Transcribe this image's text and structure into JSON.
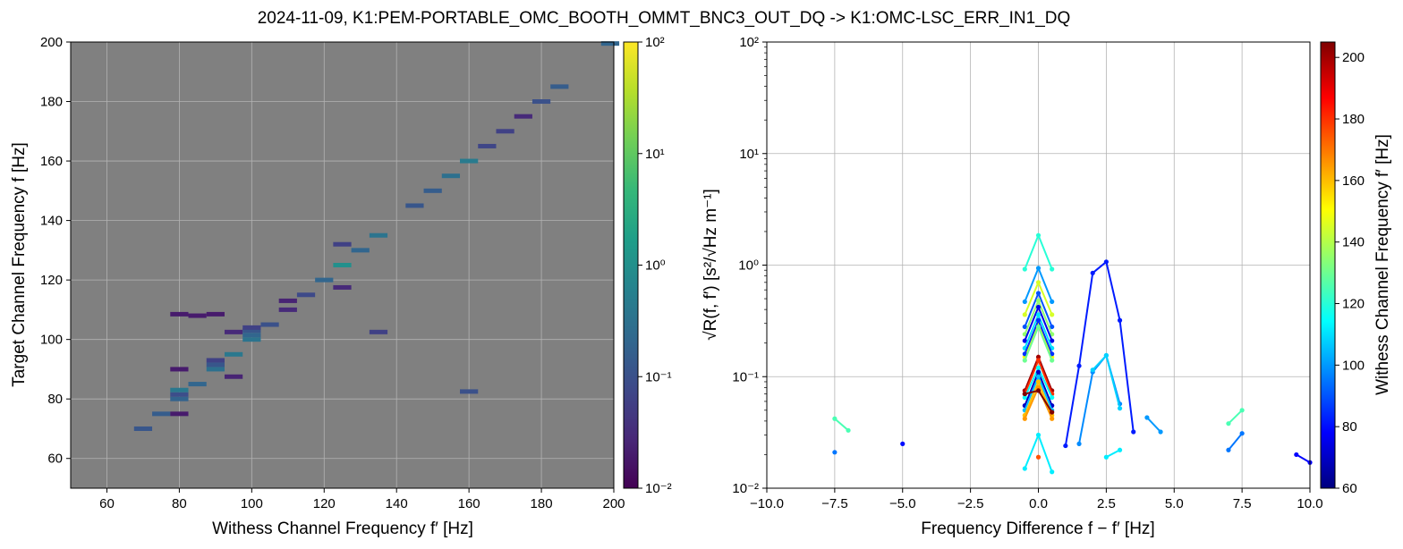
{
  "figure": {
    "title": "2024-11-09, K1:PEM-PORTABLE_OMC_BOOTH_OMMT_BNC3_OUT_DQ -> K1:OMC-LSC_ERR_IN1_DQ"
  },
  "colors": {
    "panel_background": "#808080",
    "grid": "#b3b3b3",
    "viridis": [
      "#440154",
      "#482878",
      "#3e4989",
      "#31688e",
      "#26828e",
      "#1f9e89",
      "#35b779",
      "#6ece58",
      "#b5de2b",
      "#fde725"
    ],
    "jet": [
      "#00007f",
      "#0000ff",
      "#007fff",
      "#00ffff",
      "#7fff7f",
      "#ffff00",
      "#ff7f00",
      "#ff0000",
      "#7f0000"
    ]
  },
  "chart_data": [
    {
      "type": "heatmap",
      "xlabel": "Withess Channel Frequency  f′ [Hz]",
      "ylabel": "Target Channel Frequency  f [Hz]",
      "xlim": [
        50,
        200
      ],
      "ylim": [
        50,
        200
      ],
      "xticks": [
        60,
        80,
        100,
        120,
        140,
        160,
        180,
        200
      ],
      "yticks": [
        60,
        80,
        100,
        120,
        140,
        160,
        180,
        200
      ],
      "grid": true,
      "colorbar": {
        "scale": "log",
        "range": [
          0.01,
          100
        ],
        "colormap": "viridis",
        "ticks": [
          {
            "value": 0.01,
            "label": "10⁻²"
          },
          {
            "value": 0.1,
            "label": "10⁻¹"
          },
          {
            "value": 1,
            "label": "10⁰"
          },
          {
            "value": 10,
            "label": "10¹"
          },
          {
            "value": 100,
            "label": "10²"
          }
        ]
      },
      "cells": [
        {
          "x": 70,
          "y": 70,
          "v": 0.12
        },
        {
          "x": 75,
          "y": 75,
          "v": 0.15
        },
        {
          "x": 80,
          "y": 75,
          "v": 0.02
        },
        {
          "x": 80,
          "y": 80,
          "v": 0.18
        },
        {
          "x": 80,
          "y": 81.5,
          "v": 0.09
        },
        {
          "x": 80,
          "y": 83,
          "v": 0.4
        },
        {
          "x": 80,
          "y": 90,
          "v": 0.02
        },
        {
          "x": 80,
          "y": 108.5,
          "v": 0.02
        },
        {
          "x": 85,
          "y": 85,
          "v": 0.2
        },
        {
          "x": 85,
          "y": 108,
          "v": 0.02
        },
        {
          "x": 90,
          "y": 90,
          "v": 0.3
        },
        {
          "x": 90,
          "y": 91.5,
          "v": 0.12
        },
        {
          "x": 90,
          "y": 93,
          "v": 0.06
        },
        {
          "x": 90,
          "y": 108.5,
          "v": 0.02
        },
        {
          "x": 95,
          "y": 87.5,
          "v": 0.025
        },
        {
          "x": 95,
          "y": 95,
          "v": 0.4
        },
        {
          "x": 95,
          "y": 102.5,
          "v": 0.03
        },
        {
          "x": 100,
          "y": 100,
          "v": 0.35
        },
        {
          "x": 100,
          "y": 101.5,
          "v": 0.2
        },
        {
          "x": 100,
          "y": 103,
          "v": 0.12
        },
        {
          "x": 100,
          "y": 104,
          "v": 0.06
        },
        {
          "x": 105,
          "y": 105,
          "v": 0.1
        },
        {
          "x": 110,
          "y": 110,
          "v": 0.03
        },
        {
          "x": 110,
          "y": 113,
          "v": 0.025
        },
        {
          "x": 115,
          "y": 115,
          "v": 0.08
        },
        {
          "x": 120,
          "y": 120,
          "v": 0.2
        },
        {
          "x": 125,
          "y": 117.5,
          "v": 0.03
        },
        {
          "x": 125,
          "y": 125,
          "v": 1.0
        },
        {
          "x": 125,
          "y": 132,
          "v": 0.06
        },
        {
          "x": 130,
          "y": 130,
          "v": 0.2
        },
        {
          "x": 135,
          "y": 102.5,
          "v": 0.06
        },
        {
          "x": 135,
          "y": 135,
          "v": 0.35
        },
        {
          "x": 145,
          "y": 145,
          "v": 0.12
        },
        {
          "x": 150,
          "y": 150,
          "v": 0.15
        },
        {
          "x": 155,
          "y": 155,
          "v": 0.3
        },
        {
          "x": 160,
          "y": 82.5,
          "v": 0.1
        },
        {
          "x": 160,
          "y": 160,
          "v": 0.45
        },
        {
          "x": 165,
          "y": 165,
          "v": 0.07
        },
        {
          "x": 170,
          "y": 170,
          "v": 0.06
        },
        {
          "x": 175,
          "y": 175,
          "v": 0.03
        },
        {
          "x": 180,
          "y": 180,
          "v": 0.1
        },
        {
          "x": 185,
          "y": 185,
          "v": 0.15
        },
        {
          "x": 199,
          "y": 199.5,
          "v": 0.2
        }
      ]
    },
    {
      "type": "line",
      "xlabel": "Frequency Difference f − f′ [Hz]",
      "ylabel": "√R(f, f′)  [s²/√Hz m⁻¹]",
      "xlim": [
        -10,
        10
      ],
      "ylim": [
        0.01,
        100
      ],
      "yscale": "log",
      "grid": true,
      "xticks": [
        {
          "value": -10,
          "label": "−10.0"
        },
        {
          "value": -7.5,
          "label": "−7.5"
        },
        {
          "value": -5,
          "label": "−5.0"
        },
        {
          "value": -2.5,
          "label": "−2.5"
        },
        {
          "value": 0,
          "label": "0.0"
        },
        {
          "value": 2.5,
          "label": "2.5"
        },
        {
          "value": 5,
          "label": "5.0"
        },
        {
          "value": 7.5,
          "label": "7.5"
        },
        {
          "value": 10,
          "label": "10.0"
        }
      ],
      "yticks": [
        {
          "value": 0.01,
          "label": "10⁻²"
        },
        {
          "value": 0.1,
          "label": "10⁻¹"
        },
        {
          "value": 1,
          "label": "10⁰"
        },
        {
          "value": 10,
          "label": "10¹"
        },
        {
          "value": 100,
          "label": "10²"
        }
      ],
      "colorbar": {
        "label": "Withess Channel Frequency  f′ [Hz]",
        "range": [
          60,
          205
        ],
        "colormap": "jet",
        "ticks": [
          60,
          80,
          100,
          120,
          140,
          160,
          180,
          200
        ]
      },
      "series": [
        {
          "c": 125,
          "x": [
            -7.5,
            -7.0
          ],
          "y": [
            0.042,
            0.033
          ]
        },
        {
          "c": 95,
          "x": [
            -7.5
          ],
          "y": [
            0.021
          ]
        },
        {
          "c": 80,
          "x": [
            -5.0
          ],
          "y": [
            0.025
          ]
        },
        {
          "c": 120,
          "x": [
            -0.5,
            0,
            0.5
          ],
          "y": [
            0.92,
            1.85,
            0.92
          ]
        },
        {
          "c": 100,
          "x": [
            -0.5,
            0,
            0.5
          ],
          "y": [
            0.47,
            0.94,
            0.47
          ]
        },
        {
          "c": 145,
          "x": [
            -0.5,
            0,
            0.5
          ],
          "y": [
            0.36,
            0.7,
            0.36
          ]
        },
        {
          "c": 90,
          "x": [
            -0.5,
            0,
            0.5
          ],
          "y": [
            0.28,
            0.56,
            0.28
          ]
        },
        {
          "c": 135,
          "x": [
            -0.5,
            0,
            0.5
          ],
          "y": [
            0.24,
            0.48,
            0.24
          ]
        },
        {
          "c": 75,
          "x": [
            -0.5,
            0,
            0.5
          ],
          "y": [
            0.21,
            0.42,
            0.21
          ]
        },
        {
          "c": 110,
          "x": [
            -0.5,
            0,
            0.5
          ],
          "y": [
            0.18,
            0.36,
            0.18
          ]
        },
        {
          "c": 150,
          "x": [
            -0.5,
            0,
            0.5
          ],
          "y": [
            0.15,
            0.3,
            0.15
          ]
        },
        {
          "c": 85,
          "x": [
            -0.5,
            0,
            0.5
          ],
          "y": [
            0.16,
            0.32,
            0.16
          ]
        },
        {
          "c": 130,
          "x": [
            -0.5,
            0,
            0.5
          ],
          "y": [
            0.14,
            0.28,
            0.14
          ]
        },
        {
          "c": 200,
          "x": [
            -0.5,
            0,
            0.5
          ],
          "y": [
            0.075,
            0.15,
            0.075
          ]
        },
        {
          "c": 180,
          "x": [
            -0.5,
            0,
            0.5
          ],
          "y": [
            0.07,
            0.14,
            0.07
          ]
        },
        {
          "c": 115,
          "x": [
            -0.5,
            0,
            0.5
          ],
          "y": [
            0.065,
            0.12,
            0.065
          ]
        },
        {
          "c": 70,
          "x": [
            -0.5,
            0,
            0.5
          ],
          "y": [
            0.055,
            0.11,
            0.055
          ]
        },
        {
          "c": 105,
          "x": [
            -0.5,
            0,
            0.5
          ],
          "y": [
            0.05,
            0.1,
            0.05
          ]
        },
        {
          "c": 160,
          "x": [
            -0.5,
            0,
            0.5
          ],
          "y": [
            0.045,
            0.09,
            0.045
          ]
        },
        {
          "c": 165,
          "x": [
            -0.5,
            0,
            0.5
          ],
          "y": [
            0.042,
            0.08,
            0.042
          ]
        },
        {
          "c": 205,
          "x": [
            -0.5,
            0,
            0.5
          ],
          "y": [
            0.07,
            0.075,
            0.048
          ]
        },
        {
          "c": 112,
          "x": [
            -0.5,
            0,
            0.5
          ],
          "y": [
            0.015,
            0.03,
            0.014
          ]
        },
        {
          "c": 175,
          "x": [
            0
          ],
          "y": [
            0.019
          ]
        },
        {
          "c": 82,
          "x": [
            1.0,
            1.5,
            2.0,
            2.5,
            3.0,
            3.5
          ],
          "y": [
            0.024,
            0.125,
            0.85,
            1.07,
            0.32,
            0.032
          ]
        },
        {
          "c": 98,
          "x": [
            1.5,
            2.0,
            2.5,
            3.0
          ],
          "y": [
            0.025,
            0.11,
            0.155,
            0.057
          ]
        },
        {
          "c": 108,
          "x": [
            2.0,
            2.5,
            3.0
          ],
          "y": [
            0.115,
            0.155,
            0.052
          ]
        },
        {
          "c": 112,
          "x": [
            2.5,
            3.0
          ],
          "y": [
            0.019,
            0.022
          ]
        },
        {
          "c": 100,
          "x": [
            4.0,
            4.5
          ],
          "y": [
            0.043,
            0.032
          ]
        },
        {
          "c": 125,
          "x": [
            7.0,
            7.5
          ],
          "y": [
            0.038,
            0.05
          ]
        },
        {
          "c": 95,
          "x": [
            7.0,
            7.5
          ],
          "y": [
            0.022,
            0.031
          ]
        },
        {
          "c": 78,
          "x": [
            9.5,
            10.0
          ],
          "y": [
            0.02,
            0.017
          ]
        }
      ]
    }
  ]
}
